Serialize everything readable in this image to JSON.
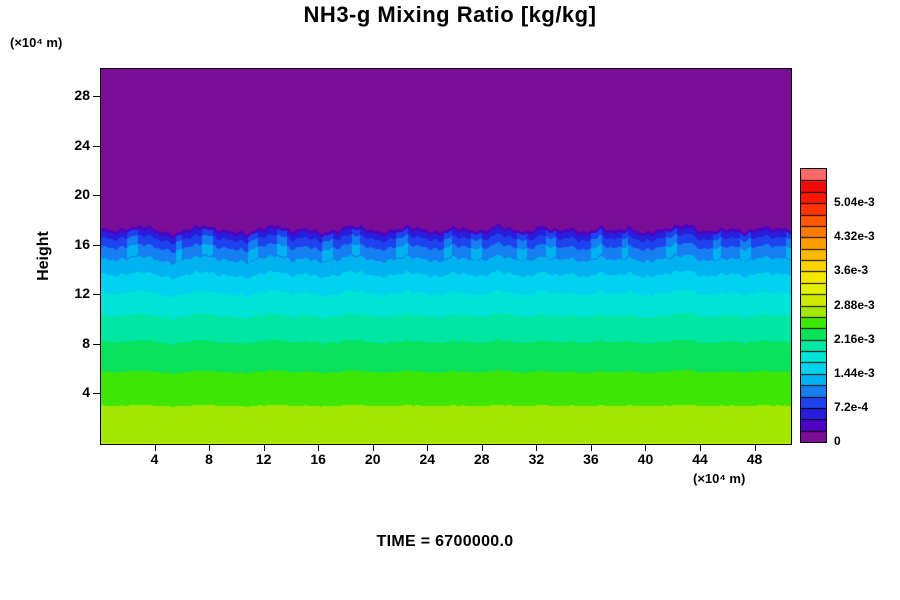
{
  "title": "NH3-g Mixing Ratio [kg/kg]",
  "time_label": "TIME = 6700000.0",
  "background_color": "#ffffff",
  "y_axis": {
    "label": "Height",
    "unit": "(×10⁴ m)",
    "ticks": [
      4,
      8,
      12,
      16,
      20,
      24,
      28
    ],
    "min": 0,
    "max": 30.3
  },
  "x_axis": {
    "unit": "(×10⁴ m)",
    "ticks": [
      4,
      8,
      12,
      16,
      20,
      24,
      28,
      32,
      36,
      40,
      44,
      48
    ],
    "min": 0,
    "max": 50.6
  },
  "colorbar": {
    "tick_labels": [
      "0",
      "7.2e-4",
      "1.44e-3",
      "2.16e-3",
      "2.88e-3",
      "3.6e-3",
      "4.32e-3",
      "5.04e-3"
    ],
    "tick_values": [
      0,
      0.00072,
      0.00144,
      0.00216,
      0.00288,
      0.0036,
      0.00432,
      0.00504
    ],
    "max_value": 0.00576,
    "segments": 24
  },
  "chart_data": {
    "type": "heatmap",
    "title": "NH3-g Mixing Ratio [kg/kg]",
    "xlabel": "(×10⁴ m)",
    "ylabel": "Height (×10⁴ m)",
    "units": "kg/kg",
    "x_range": [
      0,
      50.6
    ],
    "y_range": [
      0,
      30.3
    ],
    "contour_interval": 0.00024,
    "scale_max": 0.00576,
    "surface_value": 0.00288,
    "profile_exponent": 0.45,
    "description": "Horizontally stratified NH3 gas mixing ratio: value 0 (purple) above a wavy boundary-layer top near height 17.4×10⁴ m; below the interface the mixing ratio increases monotonically through dark blue, blue, cyan, teal and green bands to about 2.9e-3 kg/kg (yellow-green) at the surface. Contour bands every 2.4e-4 kg/kg.",
    "interface_heights": [
      17.4,
      17.2,
      17.5,
      17.7,
      17.3,
      17.1,
      17.6,
      17.8,
      17.4,
      17.2,
      17.0,
      17.5,
      17.7,
      17.3,
      17.6,
      17.2,
      17.4,
      17.8,
      17.5,
      17.1,
      17.3,
      17.6,
      17.4,
      17.2,
      17.7,
      17.5,
      17.3,
      17.8,
      17.4,
      17.1,
      17.6,
      17.3,
      17.5,
      17.2,
      17.7,
      17.4,
      17.6,
      17.1,
      17.3,
      17.5,
      17.8,
      17.2,
      17.4,
      17.6,
      17.3,
      17.7,
      17.5,
      17.4
    ],
    "detail_amplitude": 0.15,
    "colormap_stops": [
      {
        "t": 0.0,
        "c": "#7a0d96"
      },
      {
        "t": 0.03,
        "c": "#7a0d96"
      },
      {
        "t": 0.07,
        "c": "#4400cc"
      },
      {
        "t": 0.11,
        "c": "#2222dc"
      },
      {
        "t": 0.15,
        "c": "#1e46f0"
      },
      {
        "t": 0.19,
        "c": "#1482f0"
      },
      {
        "t": 0.23,
        "c": "#00b4f0"
      },
      {
        "t": 0.28,
        "c": "#00d9f0"
      },
      {
        "t": 0.32,
        "c": "#00e6d2"
      },
      {
        "t": 0.36,
        "c": "#00e69b"
      },
      {
        "t": 0.4,
        "c": "#0ae155"
      },
      {
        "t": 0.44,
        "c": "#41e600"
      },
      {
        "t": 0.48,
        "c": "#a5e600"
      },
      {
        "t": 0.52,
        "c": "#cdea00"
      },
      {
        "t": 0.58,
        "c": "#eef200"
      },
      {
        "t": 0.65,
        "c": "#fcd200"
      },
      {
        "t": 0.72,
        "c": "#ffa500"
      },
      {
        "t": 0.8,
        "c": "#ff6400"
      },
      {
        "t": 0.88,
        "c": "#ff1e00"
      },
      {
        "t": 0.94,
        "c": "#ee0a0a"
      },
      {
        "t": 1.0,
        "c": "#ff9b9b"
      }
    ]
  }
}
